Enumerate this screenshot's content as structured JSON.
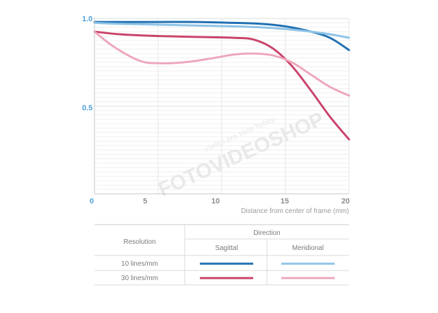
{
  "chart_data": {
    "type": "line",
    "xlabel": "Distance from center of frame (mm)",
    "ylabel": "",
    "xlim": [
      0,
      20
    ],
    "ylim": [
      0,
      1
    ],
    "x_ticks": [
      "0",
      "5",
      "10",
      "15",
      "20"
    ],
    "y_ticks": [
      "0.5",
      "1.0"
    ],
    "grid": true,
    "series": [
      {
        "color": "#1f6fb2",
        "points": [
          [
            0,
            0.98
          ],
          [
            2,
            0.98
          ],
          [
            5,
            0.98
          ],
          [
            8,
            0.98
          ],
          [
            11,
            0.975
          ],
          [
            13,
            0.97
          ],
          [
            15,
            0.955
          ],
          [
            17,
            0.925
          ],
          [
            18.5,
            0.89
          ],
          [
            20,
            0.82
          ]
        ]
      },
      {
        "color": "#8ec3e6",
        "points": [
          [
            0,
            0.975
          ],
          [
            2,
            0.97
          ],
          [
            5,
            0.965
          ],
          [
            8,
            0.96
          ],
          [
            11,
            0.955
          ],
          [
            13,
            0.95
          ],
          [
            15,
            0.94
          ],
          [
            17,
            0.925
          ],
          [
            18.5,
            0.91
          ],
          [
            20,
            0.89
          ]
        ]
      },
      {
        "color": "#c9436a",
        "points": [
          [
            0,
            0.925
          ],
          [
            2,
            0.91
          ],
          [
            5,
            0.9
          ],
          [
            8,
            0.895
          ],
          [
            11,
            0.89
          ],
          [
            12.5,
            0.88
          ],
          [
            14,
            0.83
          ],
          [
            15.5,
            0.73
          ],
          [
            17,
            0.59
          ],
          [
            18.5,
            0.44
          ],
          [
            20,
            0.31
          ]
        ]
      },
      {
        "color": "#eea6ba",
        "points": [
          [
            0,
            0.925
          ],
          [
            1.5,
            0.84
          ],
          [
            3.5,
            0.76
          ],
          [
            5,
            0.745
          ],
          [
            7,
            0.75
          ],
          [
            9,
            0.77
          ],
          [
            11,
            0.795
          ],
          [
            12.5,
            0.8
          ],
          [
            14,
            0.79
          ],
          [
            15.5,
            0.75
          ],
          [
            17,
            0.68
          ],
          [
            18.5,
            0.61
          ],
          [
            20,
            0.56
          ]
        ]
      }
    ]
  },
  "watermark": {
    "brand": "FOTOVIDEOSHOP",
    "tagline": "všetko pre Vaše hobby"
  },
  "legend_table": {
    "resolution_header": "Resolution",
    "direction_header": "Direction",
    "columns": [
      "Sagittal",
      "Meridional"
    ],
    "rows": [
      {
        "label": "10 lines/mm",
        "sagittal_color": "#1f6fb2",
        "meridional_color": "#8ec3e6"
      },
      {
        "label": "30 lines/mm",
        "sagittal_color": "#c9436a",
        "meridional_color": "#eea6ba"
      }
    ]
  }
}
